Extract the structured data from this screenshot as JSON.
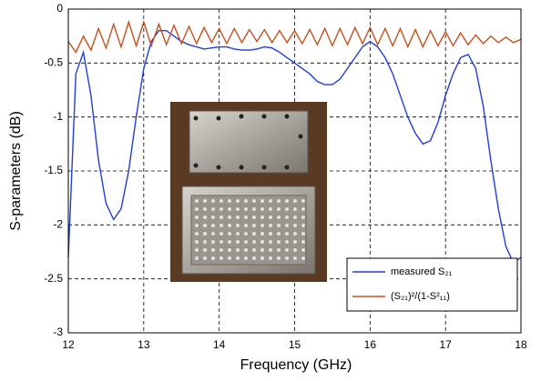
{
  "chart_data": {
    "type": "line",
    "xlabel": "Frequency (GHz)",
    "ylabel": "S-parameters (dB)",
    "x": [
      12.0,
      12.1,
      12.2,
      12.3,
      12.4,
      12.5,
      12.6,
      12.7,
      12.8,
      12.9,
      13.0,
      13.1,
      13.2,
      13.3,
      13.4,
      13.5,
      13.6,
      13.7,
      13.8,
      13.9,
      14.0,
      14.1,
      14.2,
      14.3,
      14.4,
      14.5,
      14.6,
      14.7,
      14.8,
      14.9,
      15.0,
      15.1,
      15.2,
      15.3,
      15.4,
      15.5,
      15.6,
      15.7,
      15.8,
      15.9,
      16.0,
      16.1,
      16.2,
      16.3,
      16.4,
      16.5,
      16.6,
      16.7,
      16.8,
      16.9,
      17.0,
      17.1,
      17.2,
      17.3,
      17.4,
      17.5,
      17.6,
      17.7,
      17.8,
      17.9,
      18.0
    ],
    "series": [
      {
        "name": "measured S₂₁",
        "color": "#1f3fd6",
        "values": [
          -2.3,
          -0.6,
          -0.4,
          -0.8,
          -1.4,
          -1.8,
          -1.95,
          -1.85,
          -1.5,
          -1.0,
          -0.55,
          -0.3,
          -0.2,
          -0.2,
          -0.25,
          -0.3,
          -0.33,
          -0.35,
          -0.37,
          -0.36,
          -0.35,
          -0.35,
          -0.37,
          -0.38,
          -0.38,
          -0.37,
          -0.35,
          -0.36,
          -0.4,
          -0.45,
          -0.5,
          -0.55,
          -0.6,
          -0.67,
          -0.7,
          -0.7,
          -0.65,
          -0.55,
          -0.45,
          -0.35,
          -0.3,
          -0.35,
          -0.45,
          -0.6,
          -0.8,
          -1.0,
          -1.15,
          -1.25,
          -1.22,
          -1.05,
          -0.8,
          -0.6,
          -0.45,
          -0.42,
          -0.55,
          -0.9,
          -1.4,
          -1.85,
          -2.2,
          -2.35,
          -2.3
        ]
      },
      {
        "name": "(S₂₁)²/(1-S²₁₁)",
        "color": "#c8501e",
        "values": [
          -0.3,
          -0.4,
          -0.25,
          -0.38,
          -0.18,
          -0.36,
          -0.14,
          -0.35,
          -0.12,
          -0.34,
          -0.12,
          -0.34,
          -0.14,
          -0.33,
          -0.15,
          -0.32,
          -0.16,
          -0.32,
          -0.17,
          -0.31,
          -0.18,
          -0.32,
          -0.18,
          -0.31,
          -0.19,
          -0.3,
          -0.19,
          -0.31,
          -0.2,
          -0.31,
          -0.2,
          -0.32,
          -0.19,
          -0.33,
          -0.18,
          -0.34,
          -0.18,
          -0.33,
          -0.17,
          -0.32,
          -0.17,
          -0.33,
          -0.18,
          -0.34,
          -0.18,
          -0.35,
          -0.19,
          -0.35,
          -0.2,
          -0.34,
          -0.21,
          -0.34,
          -0.22,
          -0.33,
          -0.24,
          -0.32,
          -0.25,
          -0.31,
          -0.26,
          -0.31,
          -0.28
        ]
      }
    ],
    "xlim": [
      12,
      18
    ],
    "xticks": [
      12,
      13,
      14,
      15,
      16,
      17,
      18
    ],
    "ylim": [
      -3,
      0
    ],
    "yticks": [
      -3,
      -2.5,
      -2,
      -1.5,
      -1,
      -0.5,
      0
    ],
    "grid": true,
    "legend": "lower right"
  }
}
